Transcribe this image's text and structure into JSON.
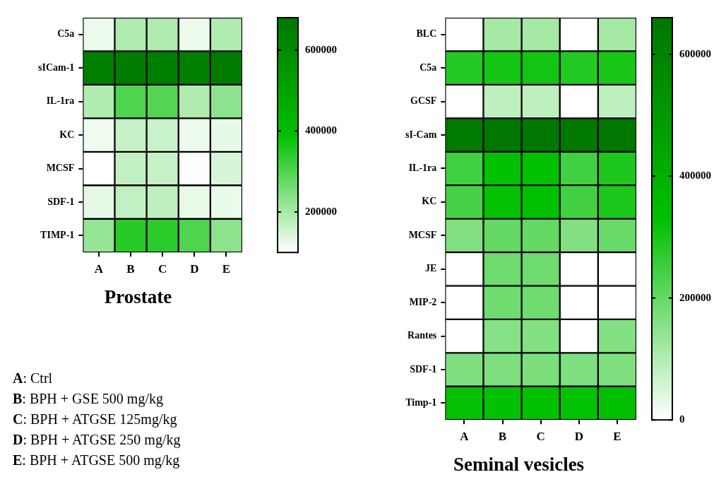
{
  "chart_data": [
    {
      "type": "heatmap",
      "title": "Prostate",
      "categories": [
        "A",
        "B",
        "C",
        "D",
        "E"
      ],
      "y_categories": [
        "C5a",
        "sICam-1",
        "IL-1ra",
        "KC",
        "MCSF",
        "SDF-1",
        "TIMP-1"
      ],
      "cells": [
        [
          123000,
          191000,
          190000,
          123000,
          190000
        ],
        [
          650000,
          655000,
          650000,
          645000,
          660000
        ],
        [
          190000,
          300000,
          295000,
          190000,
          230000
        ],
        [
          117000,
          164000,
          160000,
          120000,
          129000
        ],
        [
          100000,
          168000,
          165000,
          102000,
          146000
        ],
        [
          129000,
          168000,
          174000,
          127000,
          125000
        ],
        [
          219000,
          344000,
          340000,
          300000,
          230000
        ]
      ],
      "clim": [
        100000,
        680000
      ],
      "cticks": [
        200000,
        400000,
        600000
      ],
      "annotations": [
        "A: Ctrl",
        "B: BPH + GSE 500 mg/kg",
        "C: BPH + ATGSE 125mg/kg",
        "D: BPH + ATGSE 250 mg/kg",
        "E: BPH + ATGSE 500 mg/kg"
      ]
    },
    {
      "type": "heatmap",
      "title": "Seminal vesicles",
      "categories": [
        "A",
        "B",
        "C",
        "D",
        "E"
      ],
      "y_categories": [
        "BLC",
        "C5a",
        "GCSF",
        "sI-Cam",
        "IL-1ra",
        "KC",
        "MCSF",
        "JE",
        "MIP-2",
        "Rantes",
        "SDF-1",
        "Timp-1"
      ],
      "cells": [
        [
          0,
          116000,
          116000,
          0,
          116000
        ],
        [
          284000,
          304000,
          305000,
          285000,
          300000
        ],
        [
          0,
          84000,
          84000,
          0,
          84000
        ],
        [
          640000,
          650000,
          650000,
          648000,
          652000
        ],
        [
          246000,
          328000,
          330000,
          246000,
          291000
        ],
        [
          240000,
          325000,
          330000,
          245000,
          295000
        ],
        [
          162000,
          201000,
          200000,
          162000,
          195000
        ],
        [
          0,
          188000,
          188000,
          0,
          0
        ],
        [
          0,
          185000,
          185000,
          0,
          0
        ],
        [
          0,
          155000,
          160000,
          0,
          160000
        ],
        [
          165000,
          168000,
          170000,
          168000,
          165000
        ],
        [
          325000,
          328000,
          330000,
          326000,
          329000
        ]
      ],
      "clim": [
        0,
        660000
      ],
      "cticks": [
        0,
        200000,
        400000,
        600000
      ]
    }
  ]
}
